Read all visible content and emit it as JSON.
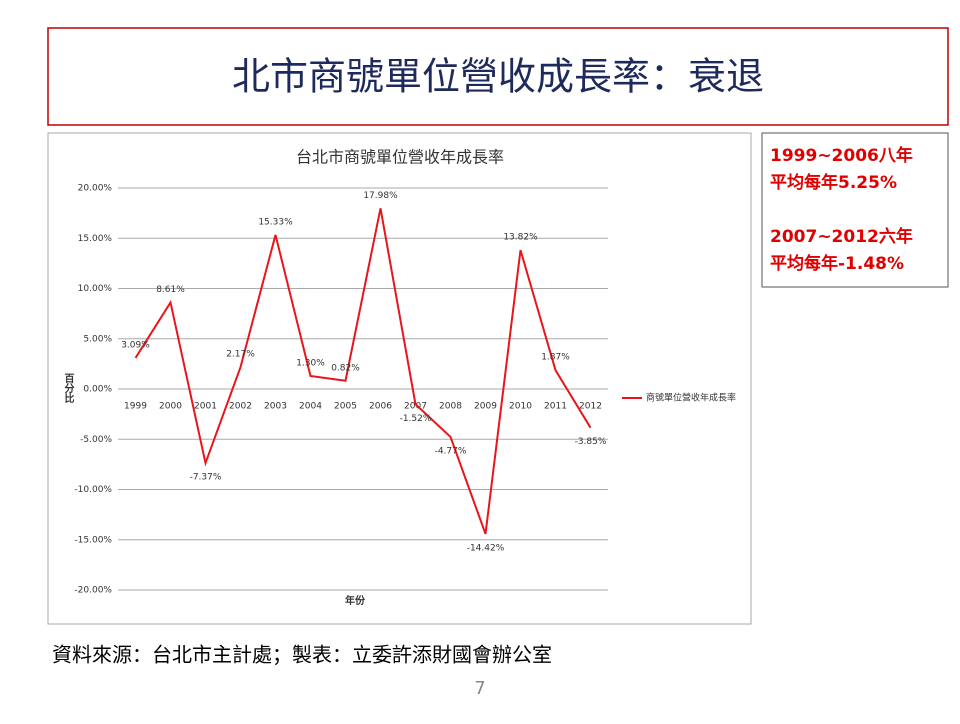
{
  "slide_title": "北市商號單位營收成長率：衰退",
  "chart_data": {
    "type": "line",
    "title": "台北市商號單位營收年成長率",
    "x_label": "年份",
    "y_label": "百分比",
    "categories": [
      "1999",
      "2000",
      "2001",
      "2002",
      "2003",
      "2004",
      "2005",
      "2006",
      "2007",
      "2008",
      "2009",
      "2010",
      "2011",
      "2012"
    ],
    "series": [
      {
        "name": "商號單位營收年成長率",
        "color": "#e8151b",
        "values": [
          3.09,
          8.61,
          -7.37,
          2.17,
          15.33,
          1.3,
          0.82,
          17.98,
          -1.52,
          -4.77,
          -14.42,
          13.82,
          1.87,
          -3.85
        ],
        "value_labels": [
          "3.09%",
          "8.61%",
          "-7.37%",
          "2.17%",
          "15.33%",
          "1.30%",
          "0.82%",
          "17.98%",
          "-1.52%",
          "-4.77%",
          "-14.42%",
          "13.82%",
          "1.87%",
          "-3.85%"
        ]
      }
    ],
    "ylim": [
      -20,
      20
    ],
    "yticks": [
      {
        "value": -20,
        "label": "-20.00%"
      },
      {
        "value": -15,
        "label": "-15.00%"
      },
      {
        "value": -10,
        "label": "-10.00%"
      },
      {
        "value": -5,
        "label": "-5.00%"
      },
      {
        "value": 0,
        "label": "0.00%"
      },
      {
        "value": 5,
        "label": "5.00%"
      },
      {
        "value": 10,
        "label": "10.00%"
      },
      {
        "value": 15,
        "label": "15.00%"
      },
      {
        "value": 20,
        "label": "20.00%"
      }
    ],
    "grid": true,
    "legend": "right"
  },
  "side_note": {
    "groups": [
      [
        "1999~2006八年",
        "平均每年5.25%"
      ],
      [
        "2007~2012六年",
        "平均每年-1.48%"
      ]
    ]
  },
  "source": "資料來源：台北市主計處；製表：立委許添財國會辦公室",
  "page_number": "7"
}
